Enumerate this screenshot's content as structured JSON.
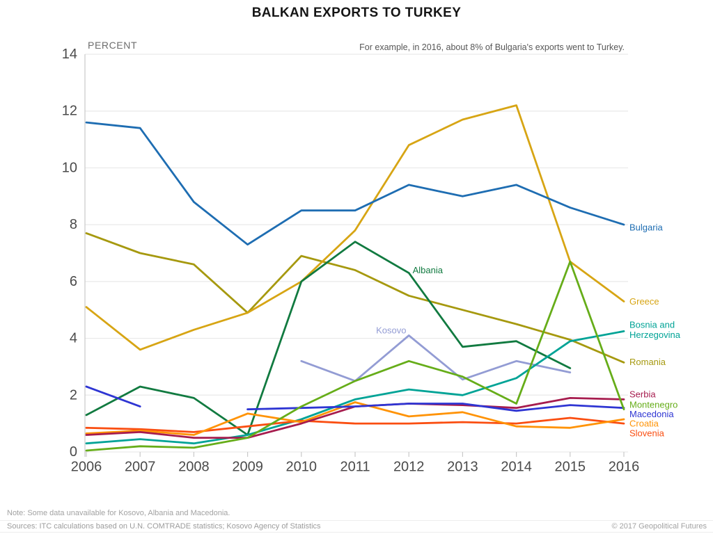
{
  "chart_data": {
    "type": "line",
    "title": "BALKAN EXPORTS TO TURKEY",
    "ylabel": "PERCENT",
    "xlabel": "",
    "annotation": "For example, in 2016, about 8% of Bulgaria's exports went to Turkey.",
    "x": [
      2006,
      2007,
      2008,
      2009,
      2010,
      2011,
      2012,
      2013,
      2014,
      2015,
      2016
    ],
    "ylim": [
      0,
      14
    ],
    "yticks": [
      0,
      2,
      4,
      6,
      8,
      10,
      12,
      14
    ],
    "grid": true,
    "legend_position": "direct-labels",
    "series": [
      {
        "name": "Romania",
        "color": "#a6990f",
        "values": [
          7.7,
          7.0,
          6.6,
          4.9,
          6.9,
          6.4,
          5.5,
          5.0,
          4.5,
          3.95,
          3.15
        ],
        "label": {
          "position": "right",
          "y": 3.17,
          "lines": [
            "Romania"
          ]
        }
      },
      {
        "name": "Greece",
        "color": "#d7a514",
        "values": [
          5.1,
          3.6,
          4.3,
          4.9,
          6.0,
          7.8,
          10.8,
          11.7,
          12.2,
          6.7,
          5.3
        ],
        "label": {
          "position": "right",
          "y": 5.3,
          "lines": [
            "Greece"
          ]
        }
      },
      {
        "name": "Bulgaria",
        "color": "#1e6db2",
        "values": [
          11.6,
          11.4,
          8.8,
          7.3,
          8.5,
          8.5,
          9.4,
          9.0,
          9.4,
          8.6,
          8.0
        ],
        "label": {
          "position": "right",
          "y": 7.9,
          "lines": [
            "Bulgaria"
          ]
        }
      },
      {
        "name": "Kosovo",
        "color": "#939cd4",
        "values": [
          null,
          null,
          null,
          null,
          3.2,
          2.5,
          4.1,
          2.55,
          3.2,
          2.8,
          null
        ],
        "label": {
          "position": "inline",
          "x": 2011.39,
          "y": 4.28,
          "lines": [
            "Kosovo"
          ]
        }
      },
      {
        "name": "Albania",
        "color": "#117a40",
        "values": [
          1.3,
          2.3,
          1.9,
          0.6,
          6.0,
          7.4,
          6.3,
          3.7,
          3.9,
          2.95,
          null
        ],
        "label": {
          "position": "inline",
          "x": 2012.07,
          "y": 6.4,
          "lines": [
            "Albania"
          ]
        }
      },
      {
        "name": "Bosnia and Herzegovina",
        "color": "#00a396",
        "values": [
          0.3,
          0.45,
          0.3,
          0.6,
          1.15,
          1.85,
          2.2,
          2.0,
          2.6,
          3.9,
          4.25
        ],
        "label": {
          "position": "right",
          "y": 4.3,
          "lines": [
            "Bosnia and",
            "Herzegovina"
          ]
        }
      },
      {
        "name": "Slovenia",
        "color": "#fa4e11",
        "values": [
          0.85,
          0.8,
          0.7,
          0.9,
          1.1,
          1.0,
          1.0,
          1.05,
          1.0,
          1.2,
          1.0
        ],
        "label": {
          "position": "right",
          "y": 0.66,
          "lines": [
            "Slovenia"
          ]
        }
      },
      {
        "name": "Croatia",
        "color": "#ff9306",
        "values": [
          0.65,
          0.75,
          0.6,
          1.35,
          1.05,
          1.75,
          1.25,
          1.4,
          0.9,
          0.85,
          1.15
        ],
        "label": {
          "position": "right",
          "y": 1.0,
          "lines": [
            "Croatia"
          ]
        }
      },
      {
        "name": "Serbia",
        "color": "#a61c4e",
        "values": [
          0.6,
          0.7,
          0.5,
          0.5,
          1.0,
          1.6,
          1.7,
          1.65,
          1.55,
          1.9,
          1.85
        ],
        "label": {
          "position": "right",
          "y": 2.03,
          "lines": [
            "Serbia"
          ]
        }
      },
      {
        "name": "Macedonia",
        "color": "#2e35d3",
        "values": [
          2.3,
          1.6,
          null,
          1.5,
          1.55,
          1.6,
          1.7,
          1.7,
          1.45,
          1.65,
          1.55
        ],
        "label": {
          "position": "right",
          "y": 1.33,
          "lines": [
            "Macedonia"
          ]
        }
      },
      {
        "name": "Montenegro",
        "color": "#66ad19",
        "values": [
          0.05,
          0.2,
          0.15,
          0.5,
          1.6,
          2.5,
          3.2,
          2.65,
          1.7,
          6.7,
          1.5
        ],
        "label": {
          "position": "right",
          "y": 1.67,
          "lines": [
            "Montenegro"
          ]
        }
      }
    ]
  },
  "footer": {
    "note": "Note: Some data unavailable for Kosovo, Albania and Macedonia.",
    "sources": "Sources: ITC calculations based on U.N. COMTRADE statistics; Kosovo Agency of Statistics",
    "copyright": "© 2017 Geopolitical Futures"
  }
}
